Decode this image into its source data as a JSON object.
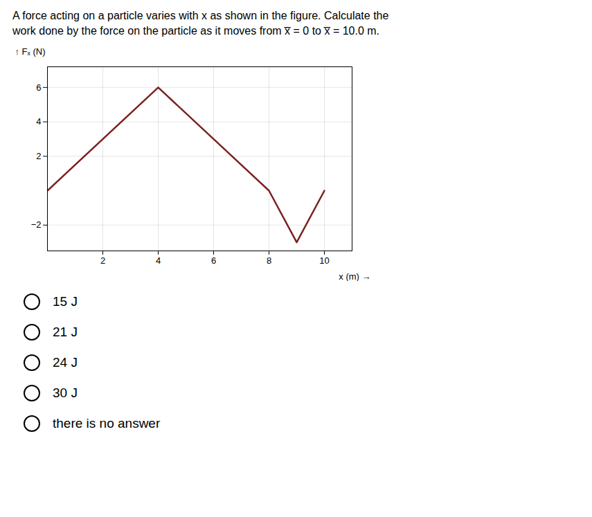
{
  "chart_data": {
    "type": "line",
    "title": "A force acting on a particle varies with x as shown in the figure. Calculate the",
    "subtitle": "work done by the force on the particle as it moves from x̅ = 0 to x̅ = 10.0 m.",
    "xlabel": "x (m)",
    "ylabel": "Fₓ (N)",
    "x": [
      0,
      4,
      8,
      9,
      10
    ],
    "values": [
      0,
      6,
      0,
      -3,
      0
    ],
    "color": "#7B2020",
    "xlim": [
      0,
      11
    ],
    "ylim": [
      -3.5,
      7.2
    ],
    "xticks": [
      2,
      4,
      6,
      8,
      10
    ],
    "yticks": [
      -2,
      2,
      4,
      6
    ],
    "grid": true,
    "annotations": [
      "15 J",
      "21 J",
      "24 J",
      "30 J",
      "there is no answer"
    ]
  }
}
